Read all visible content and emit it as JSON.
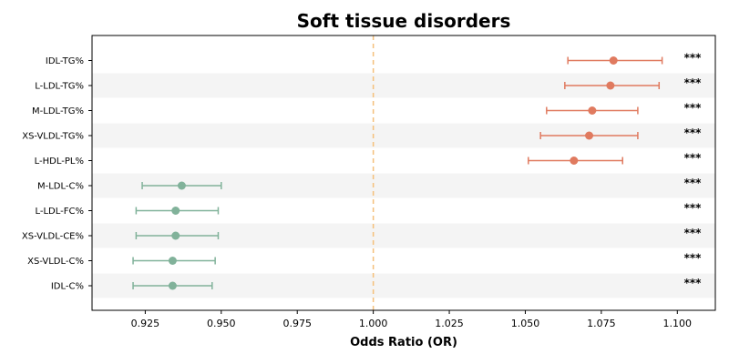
{
  "chart_data": {
    "type": "forest",
    "title": "Soft tissue disorders",
    "xlabel": "Odds Ratio (OR)",
    "xlim": [
      0.9075,
      1.1125
    ],
    "xticks": [
      0.925,
      0.95,
      0.975,
      1.0,
      1.025,
      1.05,
      1.075,
      1.1
    ],
    "xtick_labels": [
      "0.925",
      "0.950",
      "0.975",
      "1.000",
      "1.025",
      "1.050",
      "1.075",
      "1.100"
    ],
    "reference_line": 1.0,
    "reference_line_color": "#f5c07a",
    "colors": {
      "positive": "#e07a5f",
      "negative": "#81b29a",
      "band": "#f4f4f4"
    },
    "rows": [
      {
        "label": "IDL-TG%",
        "or": 1.079,
        "lower": 1.064,
        "upper": 1.095,
        "sig": "***",
        "dir": "positive"
      },
      {
        "label": "L-LDL-TG%",
        "or": 1.078,
        "lower": 1.063,
        "upper": 1.094,
        "sig": "***",
        "dir": "positive"
      },
      {
        "label": "M-LDL-TG%",
        "or": 1.072,
        "lower": 1.057,
        "upper": 1.087,
        "sig": "***",
        "dir": "positive"
      },
      {
        "label": "XS-VLDL-TG%",
        "or": 1.071,
        "lower": 1.055,
        "upper": 1.087,
        "sig": "***",
        "dir": "positive"
      },
      {
        "label": "L-HDL-PL%",
        "or": 1.066,
        "lower": 1.051,
        "upper": 1.082,
        "sig": "***",
        "dir": "positive"
      },
      {
        "label": "M-LDL-C%",
        "or": 0.937,
        "lower": 0.924,
        "upper": 0.95,
        "sig": "***",
        "dir": "negative"
      },
      {
        "label": "L-LDL-FC%",
        "or": 0.935,
        "lower": 0.922,
        "upper": 0.949,
        "sig": "***",
        "dir": "negative"
      },
      {
        "label": "XS-VLDL-CE%",
        "or": 0.935,
        "lower": 0.922,
        "upper": 0.949,
        "sig": "***",
        "dir": "negative"
      },
      {
        "label": "XS-VLDL-C%",
        "or": 0.934,
        "lower": 0.921,
        "upper": 0.948,
        "sig": "***",
        "dir": "negative"
      },
      {
        "label": "IDL-C%",
        "or": 0.934,
        "lower": 0.921,
        "upper": 0.947,
        "sig": "***",
        "dir": "negative"
      }
    ]
  }
}
